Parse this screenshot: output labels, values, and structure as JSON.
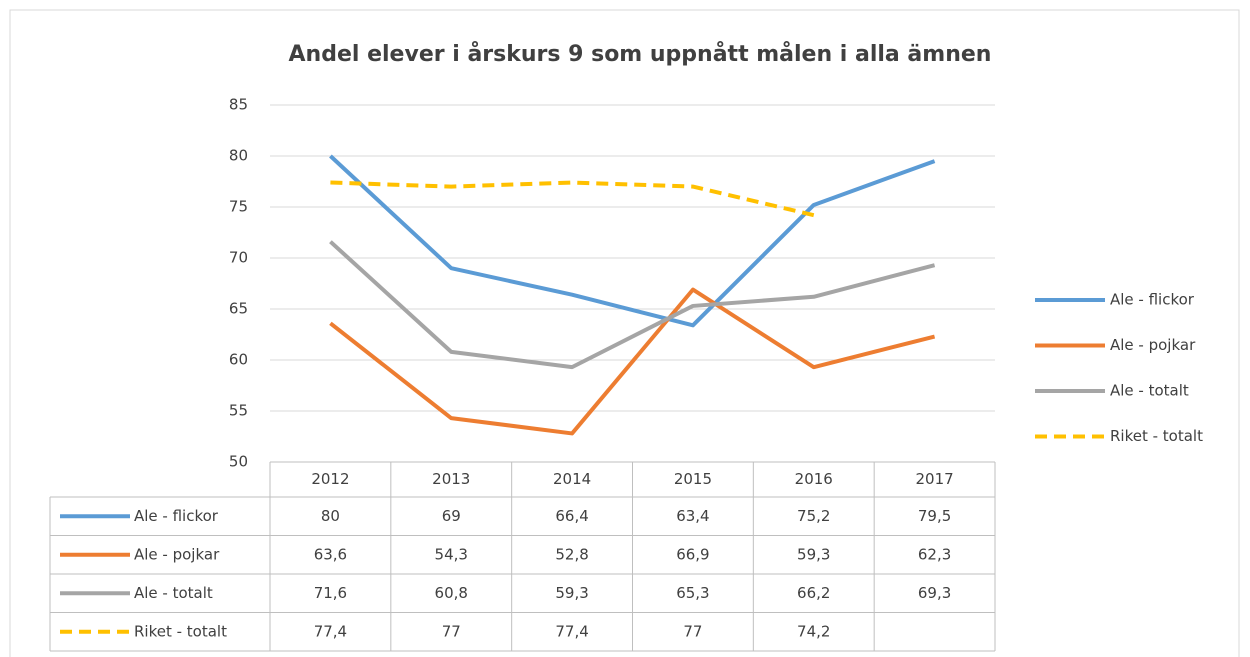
{
  "chart_data": {
    "type": "line",
    "title": "Andel elever i årskurs 9 som uppnått målen i alla ämnen",
    "categories": [
      "2012",
      "2013",
      "2014",
      "2015",
      "2016",
      "2017"
    ],
    "series": [
      {
        "name": "Ale - flickor",
        "color": "#5b9bd5",
        "dashed": false,
        "values": [
          80,
          69,
          66.4,
          63.4,
          75.2,
          79.5
        ],
        "value_labels": [
          "80",
          "69",
          "66,4",
          "63,4",
          "75,2",
          "79,5"
        ]
      },
      {
        "name": "Ale - pojkar",
        "color": "#ed7d31",
        "dashed": false,
        "values": [
          63.6,
          54.3,
          52.8,
          66.9,
          59.3,
          62.3
        ],
        "value_labels": [
          "63,6",
          "54,3",
          "52,8",
          "66,9",
          "59,3",
          "62,3"
        ]
      },
      {
        "name": "Ale - totalt",
        "color": "#a5a5a5",
        "dashed": false,
        "values": [
          71.6,
          60.8,
          59.3,
          65.3,
          66.2,
          69.3
        ],
        "value_labels": [
          "71,6",
          "60,8",
          "59,3",
          "65,3",
          "66,2",
          "69,3"
        ]
      },
      {
        "name": "Riket - totalt",
        "color": "#ffc000",
        "dashed": true,
        "values": [
          77.4,
          77,
          77.4,
          77,
          74.2,
          null
        ],
        "value_labels": [
          "77,4",
          "77",
          "77,4",
          "77",
          "74,2",
          null
        ]
      }
    ],
    "ylim": [
      50,
      85
    ],
    "yticks": [
      50,
      55,
      60,
      65,
      70,
      75,
      80,
      85
    ],
    "grid": true,
    "legend": "right",
    "data_table": true
  }
}
